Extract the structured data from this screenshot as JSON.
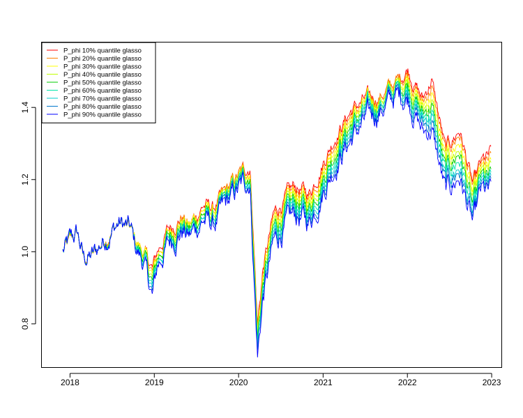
{
  "chart_data": {
    "type": "line",
    "title": "",
    "xlabel": "",
    "ylabel": "",
    "xlim": [
      "2017-09-01",
      "2023-02-15"
    ],
    "ylim": [
      0.68,
      1.58
    ],
    "x_ticks": [
      "2018",
      "2019",
      "2020",
      "2021",
      "2022",
      "2023"
    ],
    "y_ticks": [
      "0.8",
      "1.0",
      "1.2",
      "1.4"
    ],
    "y_tick_values": [
      0.8,
      1.0,
      1.2,
      1.4
    ],
    "grid": false,
    "legend_position": "top-left",
    "base_dates": [
      "2017-12-01",
      "2018-02-01",
      "2018-03-01",
      "2018-04-15",
      "2018-06-01",
      "2018-08-01",
      "2018-09-20",
      "2018-10-10",
      "2018-11-15",
      "2018-12-24",
      "2019-01-15",
      "2019-03-01",
      "2019-05-01",
      "2019-06-01",
      "2019-08-01",
      "2019-09-15",
      "2019-11-01",
      "2019-12-31",
      "2020-02-19",
      "2020-03-02",
      "2020-03-23",
      "2020-04-15",
      "2020-06-01",
      "2020-07-01",
      "2020-09-01",
      "2020-11-01",
      "2021-01-01",
      "2021-03-01",
      "2021-05-01",
      "2021-07-01",
      "2021-09-01",
      "2021-11-15",
      "2022-01-03",
      "2022-03-08",
      "2022-04-15",
      "2022-06-15",
      "2022-08-15",
      "2022-10-12",
      "2022-11-15",
      "2022-12-31"
    ],
    "series": [
      {
        "name": "P_phi 10% quantile glasso",
        "color": "#FF0000",
        "values": [
          1.0,
          1.05,
          0.98,
          0.99,
          1.04,
          1.08,
          1.06,
          1.03,
          1.0,
          0.95,
          1.0,
          1.06,
          1.1,
          1.07,
          1.13,
          1.12,
          1.16,
          1.21,
          1.24,
          1.1,
          0.8,
          0.95,
          1.1,
          1.13,
          1.18,
          1.16,
          1.25,
          1.33,
          1.39,
          1.42,
          1.43,
          1.47,
          1.51,
          1.42,
          1.48,
          1.28,
          1.34,
          1.18,
          1.24,
          1.27
        ]
      },
      {
        "name": "P_phi 20% quantile glasso",
        "color": "#FF7F00",
        "values": [
          1.0,
          1.05,
          0.98,
          0.99,
          1.04,
          1.08,
          1.06,
          1.03,
          1.0,
          0.94,
          0.99,
          1.05,
          1.1,
          1.07,
          1.12,
          1.11,
          1.16,
          1.21,
          1.23,
          1.09,
          0.79,
          0.94,
          1.09,
          1.12,
          1.17,
          1.15,
          1.24,
          1.32,
          1.38,
          1.41,
          1.43,
          1.47,
          1.5,
          1.41,
          1.46,
          1.27,
          1.33,
          1.17,
          1.23,
          1.25
        ]
      },
      {
        "name": "P_phi 30% quantile glasso",
        "color": "#FFFF00",
        "values": [
          1.0,
          1.05,
          0.98,
          0.99,
          1.04,
          1.08,
          1.06,
          1.03,
          1.0,
          0.93,
          0.99,
          1.05,
          1.09,
          1.07,
          1.12,
          1.11,
          1.15,
          1.2,
          1.23,
          1.08,
          0.78,
          0.93,
          1.08,
          1.11,
          1.16,
          1.14,
          1.23,
          1.31,
          1.37,
          1.41,
          1.42,
          1.46,
          1.49,
          1.4,
          1.44,
          1.25,
          1.31,
          1.15,
          1.22,
          1.23
        ]
      },
      {
        "name": "P_phi 40% quantile glasso",
        "color": "#BFFF00",
        "values": [
          1.0,
          1.05,
          0.98,
          0.99,
          1.04,
          1.08,
          1.06,
          1.02,
          0.99,
          0.92,
          0.98,
          1.04,
          1.09,
          1.06,
          1.11,
          1.1,
          1.15,
          1.2,
          1.22,
          1.07,
          0.77,
          0.92,
          1.07,
          1.1,
          1.15,
          1.13,
          1.22,
          1.3,
          1.36,
          1.4,
          1.42,
          1.46,
          1.48,
          1.39,
          1.42,
          1.24,
          1.29,
          1.14,
          1.21,
          1.22
        ]
      },
      {
        "name": "P_phi 50% quantile glasso",
        "color": "#00CC00",
        "values": [
          1.0,
          1.05,
          0.98,
          0.99,
          1.04,
          1.08,
          1.06,
          1.02,
          0.99,
          0.91,
          0.98,
          1.04,
          1.08,
          1.06,
          1.11,
          1.09,
          1.14,
          1.19,
          1.22,
          1.06,
          0.76,
          0.91,
          1.06,
          1.09,
          1.14,
          1.12,
          1.21,
          1.29,
          1.35,
          1.39,
          1.41,
          1.45,
          1.47,
          1.38,
          1.41,
          1.22,
          1.28,
          1.12,
          1.2,
          1.2
        ]
      },
      {
        "name": "P_phi 60% quantile glasso",
        "color": "#00E5AA",
        "values": [
          1.0,
          1.05,
          0.98,
          0.99,
          1.04,
          1.08,
          1.06,
          1.02,
          0.98,
          0.9,
          0.97,
          1.03,
          1.08,
          1.05,
          1.1,
          1.09,
          1.14,
          1.19,
          1.21,
          1.05,
          0.75,
          0.9,
          1.05,
          1.08,
          1.13,
          1.11,
          1.2,
          1.28,
          1.34,
          1.39,
          1.41,
          1.45,
          1.46,
          1.37,
          1.39,
          1.21,
          1.26,
          1.11,
          1.19,
          1.19
        ]
      },
      {
        "name": "P_phi 70% quantile glasso",
        "color": "#00CCCC",
        "values": [
          1.0,
          1.05,
          0.98,
          0.99,
          1.04,
          1.08,
          1.06,
          1.01,
          0.98,
          0.89,
          0.97,
          1.03,
          1.07,
          1.05,
          1.1,
          1.08,
          1.13,
          1.18,
          1.21,
          1.04,
          0.74,
          0.89,
          1.04,
          1.07,
          1.12,
          1.1,
          1.19,
          1.27,
          1.33,
          1.38,
          1.4,
          1.44,
          1.45,
          1.36,
          1.38,
          1.19,
          1.24,
          1.09,
          1.18,
          1.18
        ]
      },
      {
        "name": "P_phi 80% quantile glasso",
        "color": "#0077CC",
        "values": [
          1.0,
          1.05,
          0.98,
          0.99,
          1.04,
          1.08,
          1.06,
          1.01,
          0.97,
          0.88,
          0.96,
          1.02,
          1.07,
          1.04,
          1.09,
          1.08,
          1.13,
          1.18,
          1.2,
          1.03,
          0.73,
          0.88,
          1.03,
          1.06,
          1.11,
          1.09,
          1.18,
          1.26,
          1.32,
          1.37,
          1.4,
          1.44,
          1.44,
          1.35,
          1.36,
          1.18,
          1.23,
          1.08,
          1.17,
          1.17
        ]
      },
      {
        "name": "P_phi 90% quantile glasso",
        "color": "#0000FF",
        "values": [
          1.0,
          1.05,
          0.98,
          0.99,
          1.04,
          1.08,
          1.06,
          1.01,
          0.97,
          0.87,
          0.96,
          1.02,
          1.06,
          1.04,
          1.09,
          1.07,
          1.12,
          1.17,
          1.2,
          1.02,
          0.71,
          0.87,
          1.02,
          1.05,
          1.1,
          1.08,
          1.17,
          1.25,
          1.31,
          1.36,
          1.39,
          1.43,
          1.43,
          1.33,
          1.34,
          1.16,
          1.21,
          1.07,
          1.16,
          1.16
        ]
      }
    ]
  }
}
